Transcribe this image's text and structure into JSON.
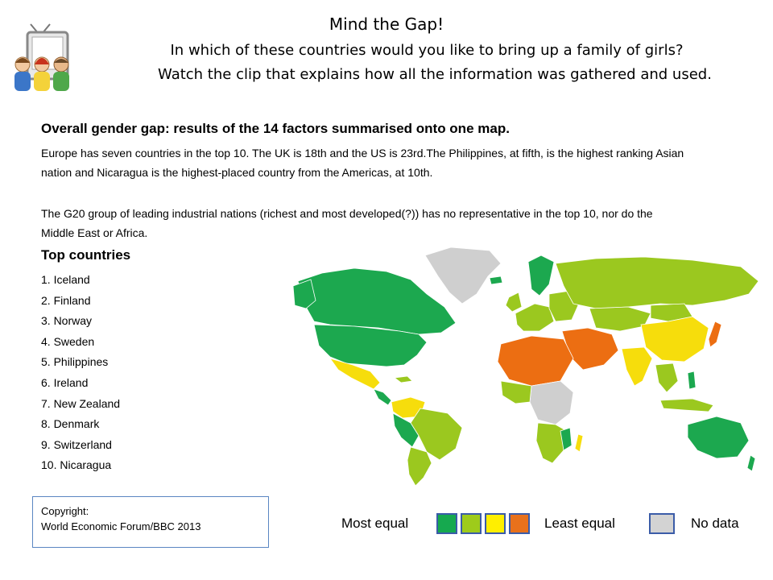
{
  "header": {
    "title": "Mind the Gap!",
    "subtitle1": "In which of these countries would you like to bring up a family of girls?",
    "subtitle2": "Watch the clip that explains how all the information was gathered and used."
  },
  "summary": {
    "headline": "Overall gender gap: results of the 14 factors summarised onto one map.",
    "paragraph1": "Europe has seven countries in the top 10. The UK is 18th and the US is 23rd.The Philippines, at fifth, is the highest ranking Asian nation and Nicaragua is the highest-placed country from the Americas, at 10th.",
    "paragraph2": "The G20 group of leading industrial nations (richest and most developed(?)) has no representative in the top 10, nor do the Middle East or Africa."
  },
  "top_countries": {
    "heading": "Top countries",
    "items": [
      "1. Iceland",
      "2. Finland",
      "3. Norway",
      "4. Sweden",
      "5. Philippines",
      "6. Ireland",
      "7. New Zealand",
      "8. Denmark",
      "9. Switzerland",
      "10. Nicaragua"
    ]
  },
  "copyright": {
    "line1": "Copyright:",
    "line2": "World Economic Forum/BBC 2013"
  },
  "legend": {
    "most_equal": "Most equal",
    "least_equal": "Least equal",
    "no_data": "No data",
    "colors": [
      "#16a94f",
      "#9ecb1b",
      "#ffef00",
      "#e8711c"
    ],
    "no_data_color": "#d3d3d3"
  },
  "map_colors": {
    "green": "#1ca84f",
    "lime": "#9bc81f",
    "yellow": "#f6dd0c",
    "orange": "#ec6e12",
    "grey": "#cfcfcf"
  }
}
